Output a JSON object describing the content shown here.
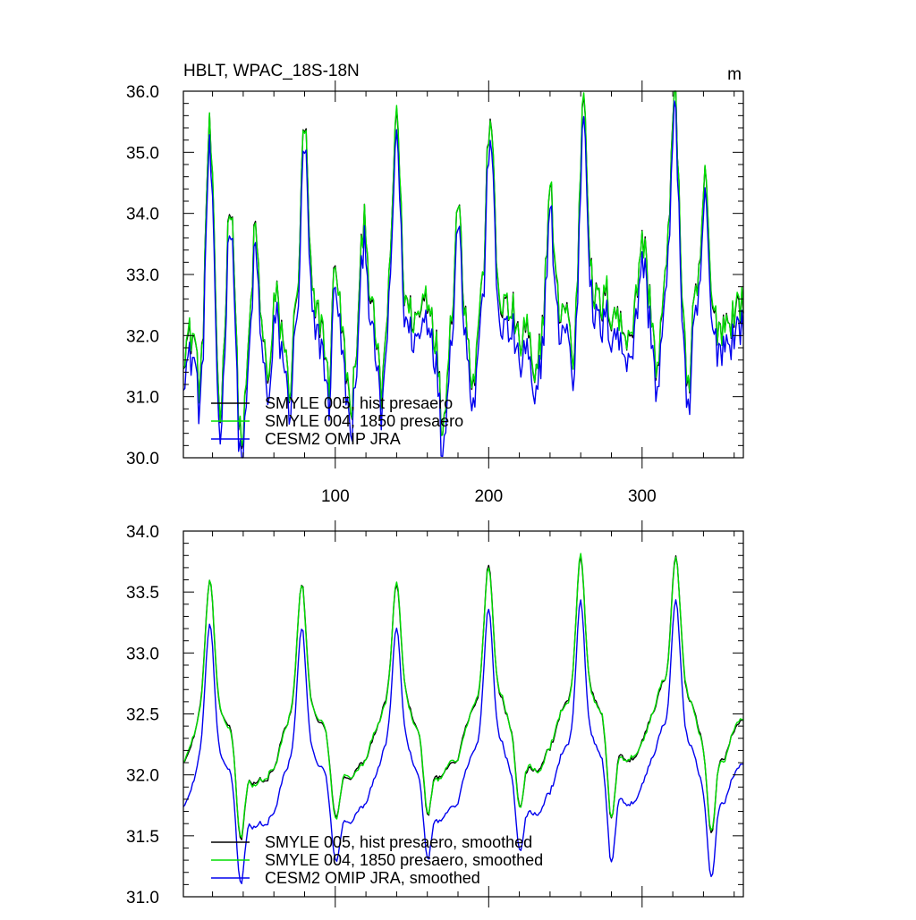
{
  "chart_data": [
    {
      "type": "line",
      "title": "HBLT, WPAC_18S-18N",
      "units_label": "m",
      "xlim": [
        1,
        366
      ],
      "ylim": [
        30.0,
        36.0
      ],
      "x_ticks": [
        100,
        200,
        300
      ],
      "x_tick_labels": [
        "100",
        "200",
        "300"
      ],
      "y_ticks": [
        30.0,
        31.0,
        32.0,
        33.0,
        34.0,
        35.0,
        36.0
      ],
      "y_tick_labels": [
        "30.0",
        "31.0",
        "32.0",
        "33.0",
        "34.0",
        "35.0",
        "36.0"
      ],
      "grid": false,
      "legend_position": "bottom-left",
      "shape": {
        "period": 60,
        "baseline": 31.9,
        "trend_per_day": 0.0017,
        "peak_days": [
          18,
          32,
          48,
          60,
          80,
          100,
          119,
          140,
          160,
          180,
          201,
          220,
          240,
          262,
          280,
          300,
          321,
          341
        ],
        "peak_heights": [
          34.9,
          34.1,
          33.9,
          33.0,
          34.9,
          33.3,
          34.0,
          35.1,
          33.8,
          34.0,
          35.0,
          33.1,
          34.1,
          35.2,
          33.6,
          34.1,
          35.2,
          34.1
        ],
        "trough_days": [
          12,
          25,
          37,
          40,
          58,
          70,
          96,
          110,
          130,
          160,
          170,
          190,
          220,
          230,
          255,
          280,
          300,
          310,
          330
        ],
        "trough_depths": [
          30.8,
          30.3,
          30.9,
          30.7,
          30.9,
          30.8,
          30.8,
          30.8,
          30.6,
          30.6,
          30.5,
          30.6,
          30.3,
          31.0,
          30.8,
          30.3,
          31.0,
          30.6,
          30.3
        ],
        "noise_amp": 0.6
      },
      "series": [
        {
          "name": "SMYLE 005, hist presaero",
          "color": "#000000",
          "offset": 0.35,
          "shift": 0.0
        },
        {
          "name": "SMYLE 004, 1850 presaero",
          "color": "#00dd00",
          "offset": 0.36,
          "shift": 0.04
        },
        {
          "name": "CESM2 OMIP JRA",
          "color": "#0000ee",
          "offset": 0.0,
          "shift": 0.0
        }
      ]
    },
    {
      "type": "line",
      "xlim": [
        1,
        366
      ],
      "ylim": [
        31.0,
        34.0
      ],
      "x_ticks": [
        100,
        200,
        300
      ],
      "y_ticks": [
        31.0,
        31.5,
        32.0,
        32.5,
        33.0,
        33.5,
        34.0
      ],
      "y_tick_labels": [
        "31.0",
        "31.5",
        "32.0",
        "32.5",
        "33.0",
        "33.5",
        "34.0"
      ],
      "grid": false,
      "legend_position": "bottom-left",
      "shape": {
        "period": 60,
        "baseline": 32.0,
        "trend_per_day": 0.0008,
        "peak_days": [
          18,
          78,
          140,
          200,
          260,
          322
        ],
        "peak_heights": [
          33.2,
          33.1,
          33.15,
          33.2,
          33.2,
          33.25
        ],
        "trough_days": [
          38,
          100,
          160,
          220,
          280,
          345
        ],
        "trough_depths": [
          31.15,
          31.4,
          31.35,
          31.35,
          31.2,
          31.2
        ],
        "noise_amp": 0.18
      },
      "series": [
        {
          "name": "SMYLE 005, hist presaero, smoothed",
          "color": "#000000",
          "offset": 0.36,
          "shift": 0.0
        },
        {
          "name": "SMYLE 004, 1850 presaero, smoothed",
          "color": "#00dd00",
          "offset": 0.36,
          "shift": 0.02
        },
        {
          "name": "CESM2 OMIP JRA, smoothed",
          "color": "#0000ee",
          "offset": 0.0,
          "shift": 0.0
        }
      ]
    }
  ]
}
